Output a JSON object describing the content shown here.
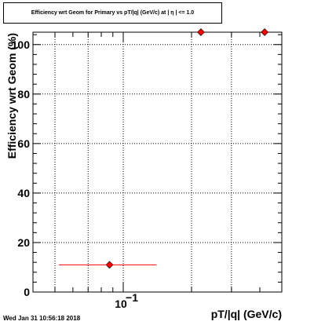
{
  "title": "Efficiency wrt Geom for Primary vs pT/|q| (GeV/c) at | η | <= 1.0",
  "timestamp": "Wed Jan 31 10:56:18 2018",
  "colors": {
    "marker": "#ff0000",
    "frame": "#000000",
    "grid": "#000000"
  },
  "chart_data": {
    "type": "scatter",
    "title": "Efficiency wrt Geom for Primary vs pT/|q| (GeV/c) at | η | <= 1.0",
    "xlabel": "pT/|q| (GeV/c)",
    "ylabel": "Efficiency wrt Geom (%)",
    "xscale": "log",
    "xlim": [
      0.04,
      0.5
    ],
    "ylim": [
      0,
      105
    ],
    "grid": true,
    "x_tick_labels": [
      {
        "value": 0.1,
        "label": "10",
        "exponent": "−1"
      }
    ],
    "y_tick_labels": [
      "0",
      "20",
      "40",
      "60",
      "80",
      "100"
    ],
    "points": [
      {
        "x": 0.087,
        "y": 11,
        "xerr_low": 0.052,
        "xerr_high": 0.14
      },
      {
        "x": 0.22,
        "y": 105
      },
      {
        "x": 0.42,
        "y": 105
      }
    ]
  }
}
